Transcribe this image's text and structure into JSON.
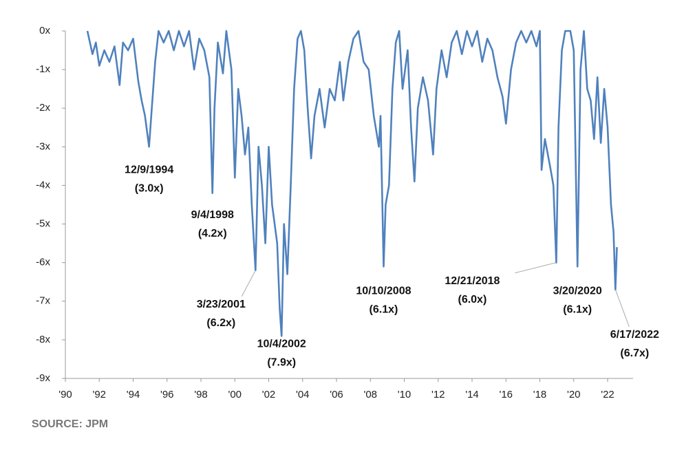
{
  "chart_data": {
    "type": "line",
    "color": "#4f81bd",
    "x": [
      1991.3,
      1991.6,
      1991.8,
      1992.0,
      1992.3,
      1992.6,
      1992.9,
      1993.2,
      1993.4,
      1993.7,
      1994.0,
      1994.3,
      1994.5,
      1994.7,
      1994.94,
      1995.1,
      1995.3,
      1995.5,
      1995.8,
      1996.1,
      1996.4,
      1996.7,
      1997.0,
      1997.3,
      1997.6,
      1997.9,
      1998.2,
      1998.5,
      1998.68,
      1998.8,
      1999.0,
      1999.3,
      1999.5,
      1999.8,
      2000.0,
      2000.2,
      2000.4,
      2000.6,
      2000.8,
      2001.0,
      2001.22,
      2001.4,
      2001.6,
      2001.8,
      2002.0,
      2002.2,
      2002.5,
      2002.65,
      2002.76,
      2002.9,
      2003.1,
      2003.3,
      2003.5,
      2003.7,
      2003.9,
      2004.1,
      2004.3,
      2004.5,
      2004.7,
      2005.0,
      2005.3,
      2005.6,
      2005.9,
      2006.2,
      2006.4,
      2006.7,
      2007.0,
      2007.3,
      2007.6,
      2007.9,
      2008.2,
      2008.5,
      2008.6,
      2008.78,
      2008.9,
      2009.1,
      2009.3,
      2009.5,
      2009.7,
      2009.9,
      2010.2,
      2010.4,
      2010.6,
      2010.8,
      2011.1,
      2011.4,
      2011.7,
      2011.9,
      2012.2,
      2012.5,
      2012.8,
      2013.1,
      2013.4,
      2013.7,
      2014.0,
      2014.3,
      2014.6,
      2014.9,
      2015.2,
      2015.5,
      2015.8,
      2016.0,
      2016.3,
      2016.6,
      2016.9,
      2017.2,
      2017.5,
      2017.8,
      2018.0,
      2018.1,
      2018.3,
      2018.6,
      2018.8,
      2018.97,
      2019.1,
      2019.3,
      2019.5,
      2019.8,
      2020.0,
      2020.22,
      2020.4,
      2020.6,
      2020.8,
      2021.0,
      2021.2,
      2021.4,
      2021.6,
      2021.8,
      2022.0,
      2022.2,
      2022.35,
      2022.46,
      2022.55
    ],
    "values": [
      0,
      -0.6,
      -0.3,
      -0.9,
      -0.5,
      -0.8,
      -0.4,
      -1.4,
      -0.3,
      -0.5,
      -0.2,
      -1.3,
      -1.8,
      -2.2,
      -3.0,
      -2.0,
      -0.8,
      0,
      -0.3,
      0,
      -0.5,
      0,
      -0.4,
      0,
      -1.0,
      -0.2,
      -0.5,
      -1.2,
      -4.2,
      -2.0,
      -0.3,
      -1.1,
      0,
      -1.0,
      -3.8,
      -1.5,
      -2.2,
      -3.2,
      -2.5,
      -4.5,
      -6.2,
      -3.0,
      -4.0,
      -5.5,
      -3.0,
      -4.5,
      -5.5,
      -7.2,
      -7.9,
      -5.0,
      -6.3,
      -4.0,
      -1.5,
      -0.2,
      0,
      -0.5,
      -2.0,
      -3.3,
      -2.2,
      -1.5,
      -2.5,
      -1.5,
      -1.8,
      -0.8,
      -1.8,
      -0.8,
      -0.2,
      0,
      -0.8,
      -1.0,
      -2.2,
      -3.0,
      -2.2,
      -6.1,
      -4.5,
      -4.0,
      -1.5,
      -0.3,
      0,
      -1.5,
      -0.5,
      -2.5,
      -3.9,
      -2.0,
      -1.2,
      -1.8,
      -3.2,
      -1.5,
      -0.5,
      -1.2,
      -0.3,
      0,
      -0.6,
      0,
      -0.4,
      0,
      -0.8,
      -0.2,
      -0.5,
      -1.2,
      -1.7,
      -2.4,
      -1.0,
      -0.3,
      0,
      -0.3,
      0,
      -0.4,
      0,
      -3.6,
      -2.8,
      -3.5,
      -4.0,
      -6.0,
      -2.5,
      -0.5,
      0,
      0,
      -0.5,
      -6.1,
      -1.0,
      0,
      -1.5,
      -1.8,
      -2.8,
      -1.2,
      -2.9,
      -1.5,
      -2.5,
      -4.5,
      -5.2,
      -6.7,
      -5.6
    ],
    "xlim": [
      1990,
      2023.5
    ],
    "ylim": [
      -9,
      0
    ],
    "xticks": [
      {
        "value": 1990,
        "label": "'90"
      },
      {
        "value": 1992,
        "label": "'92"
      },
      {
        "value": 1994,
        "label": "'94"
      },
      {
        "value": 1996,
        "label": "'96"
      },
      {
        "value": 1998,
        "label": "'98"
      },
      {
        "value": 2000,
        "label": "'00"
      },
      {
        "value": 2002,
        "label": "'02"
      },
      {
        "value": 2004,
        "label": "'04"
      },
      {
        "value": 2006,
        "label": "'06"
      },
      {
        "value": 2008,
        "label": "'08"
      },
      {
        "value": 2010,
        "label": "'10"
      },
      {
        "value": 2012,
        "label": "'12"
      },
      {
        "value": 2014,
        "label": "'14"
      },
      {
        "value": 2016,
        "label": "'16"
      },
      {
        "value": 2018,
        "label": "'18"
      },
      {
        "value": 2020,
        "label": "'20"
      },
      {
        "value": 2022,
        "label": "'22"
      }
    ],
    "yticks": [
      {
        "value": 0,
        "label": "0x"
      },
      {
        "value": -1,
        "label": "-1x"
      },
      {
        "value": -2,
        "label": "-2x"
      },
      {
        "value": -3,
        "label": "-3x"
      },
      {
        "value": -4,
        "label": "-4x"
      },
      {
        "value": -5,
        "label": "-5x"
      },
      {
        "value": -6,
        "label": "-6x"
      },
      {
        "value": -7,
        "label": "-7x"
      },
      {
        "value": -8,
        "label": "-8x"
      },
      {
        "value": -9,
        "label": "-9x"
      }
    ],
    "annotations": [
      {
        "label": "12/9/1994",
        "value_label": "(3.0x)",
        "x": 1994.94,
        "y": -3.0
      },
      {
        "label": "9/4/1998",
        "value_label": "(4.2x)",
        "x": 1998.68,
        "y": -4.2
      },
      {
        "label": "3/23/2001",
        "value_label": "(6.2x)",
        "x": 2001.22,
        "y": -6.2
      },
      {
        "label": "10/4/2002",
        "value_label": "(7.9x)",
        "x": 2002.76,
        "y": -7.9
      },
      {
        "label": "10/10/2008",
        "value_label": "(6.1x)",
        "x": 2008.78,
        "y": -6.1
      },
      {
        "label": "12/21/2018",
        "value_label": "(6.0x)",
        "x": 2018.97,
        "y": -6.0
      },
      {
        "label": "3/20/2020",
        "value_label": "(6.1x)",
        "x": 2020.22,
        "y": -6.1
      },
      {
        "label": "6/17/2022",
        "value_label": "(6.7x)",
        "x": 2022.46,
        "y": -6.7
      }
    ]
  },
  "source": "SOURCE: JPM"
}
